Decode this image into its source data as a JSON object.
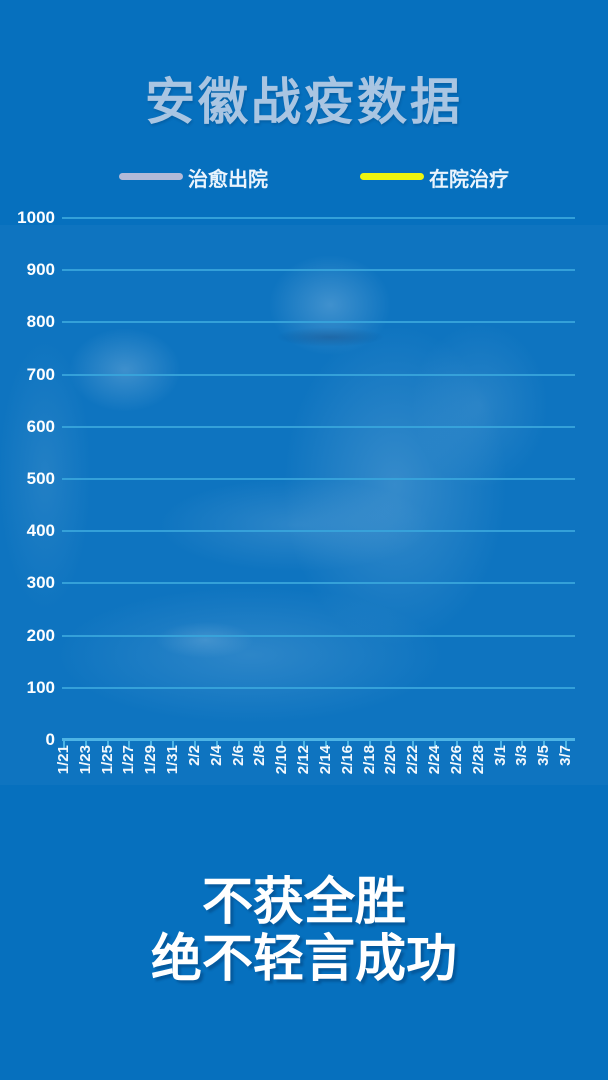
{
  "page": {
    "background_color": "#0670be"
  },
  "header": {
    "title": "安徽战疫数据",
    "title_color": "#a9c5e2"
  },
  "legend": {
    "items": [
      {
        "label": "治愈出院",
        "color": "#b2bad8"
      },
      {
        "label": "在院治疗",
        "color": "#edf50f"
      }
    ]
  },
  "chart_data": {
    "type": "line",
    "title": "安徽战疫数据",
    "categories": [
      "1/21",
      "1/23",
      "1/25",
      "1/27",
      "1/29",
      "1/31",
      "2/2",
      "2/4",
      "2/6",
      "2/8",
      "2/10",
      "2/12",
      "2/14",
      "2/16",
      "2/18",
      "2/20",
      "2/22",
      "2/24",
      "2/26",
      "2/28",
      "3/1",
      "3/3",
      "3/5",
      "3/7"
    ],
    "series": [
      {
        "name": "治愈出院",
        "color": "#b2bad8",
        "values": []
      },
      {
        "name": "在院治疗",
        "color": "#edf50f",
        "values": []
      }
    ],
    "ylim": [
      0,
      1000
    ],
    "yticks": [
      0,
      100,
      200,
      300,
      400,
      500,
      600,
      700,
      800,
      900,
      1000
    ],
    "grid": true,
    "legend_position": "top",
    "note": "no series values are drawn in this frame; only grid, axes and legend are visible"
  },
  "slogan": {
    "line1": "不获全胜",
    "line2": "绝不轻言成功"
  },
  "background": {
    "description": "faint blue-tinted photo of a medical worker in protective suit treating an ICU patient"
  }
}
